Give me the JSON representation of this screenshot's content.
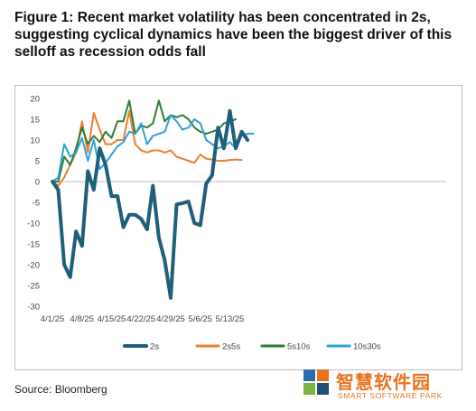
{
  "figure": {
    "title": "Figure 1: Recent market volatility has been concentrated in 2s, suggesting cyclical dynamics have been the biggest driver of this selloff as recession odds fall",
    "source": "Source: Bloomberg"
  },
  "watermark": {
    "cn": "智慧软件园",
    "en": "SMART SOFTWARE PARK",
    "colors": [
      "#2b6cb0",
      "#e8731e",
      "#7cb342",
      "#1f4e79"
    ]
  },
  "chart_data": {
    "type": "line",
    "ylim": [
      -30,
      20
    ],
    "yticks": [
      20,
      15,
      10,
      5,
      0,
      -5,
      -10,
      -15,
      -20,
      -25,
      -30
    ],
    "xticks": [
      "4/1/25",
      "4/8/25",
      "4/15/25",
      "4/22/25",
      "4/29/25",
      "5/6/25",
      "5/13/25"
    ],
    "xtick_index": [
      0,
      5,
      10,
      15,
      20,
      25,
      30
    ],
    "legend_position": "bottom",
    "series": [
      {
        "name": "2s",
        "color": "#1f5f7a",
        "width": 4,
        "values": [
          0,
          -2,
          -20,
          -23,
          -12,
          -15.5,
          2.5,
          -2,
          8,
          4,
          -3.5,
          -3.5,
          -11,
          -8,
          -8,
          -9,
          -11.5,
          -1,
          -13.5,
          -19,
          -28,
          -5.5,
          -5.2,
          -4.8,
          -10,
          -10.5,
          -0.5,
          1.5,
          13,
          8,
          17,
          8,
          12,
          10
        ]
      },
      {
        "name": "2s5s",
        "color": "#ed7d31",
        "width": 2,
        "values": [
          0,
          -1,
          1,
          4,
          7,
          14.5,
          7,
          16.5,
          12.5,
          9,
          9,
          10,
          10,
          17,
          9,
          7.5,
          7,
          7.5,
          7.5,
          7,
          7.5,
          6,
          5.5,
          5,
          4.5,
          6.5,
          5.5,
          5.3,
          5,
          5,
          5.2,
          5.3,
          5.2
        ]
      },
      {
        "name": "5s10s",
        "color": "#2e7d32",
        "width": 2,
        "values": [
          0,
          0,
          6,
          4,
          8,
          13,
          9,
          11,
          9.5,
          12,
          10.5,
          14.5,
          14.5,
          19.5,
          11.5,
          13.5,
          13,
          14,
          19.5,
          14.5,
          16,
          15.5,
          16,
          15,
          13,
          12,
          11.5,
          12,
          12.5,
          14,
          14.5,
          15
        ]
      },
      {
        "name": "10s30s",
        "color": "#2ea1d8",
        "width": 2,
        "values": [
          0,
          1,
          9,
          6,
          7,
          10.5,
          5,
          10,
          3,
          4.5,
          6.5,
          8.5,
          9.5,
          12,
          11.5,
          14,
          9,
          11,
          11.5,
          12,
          16,
          14.5,
          12.5,
          13,
          15,
          14,
          10,
          9,
          8,
          8.5,
          9.5,
          8,
          11,
          11.5,
          11.5
        ]
      }
    ]
  }
}
